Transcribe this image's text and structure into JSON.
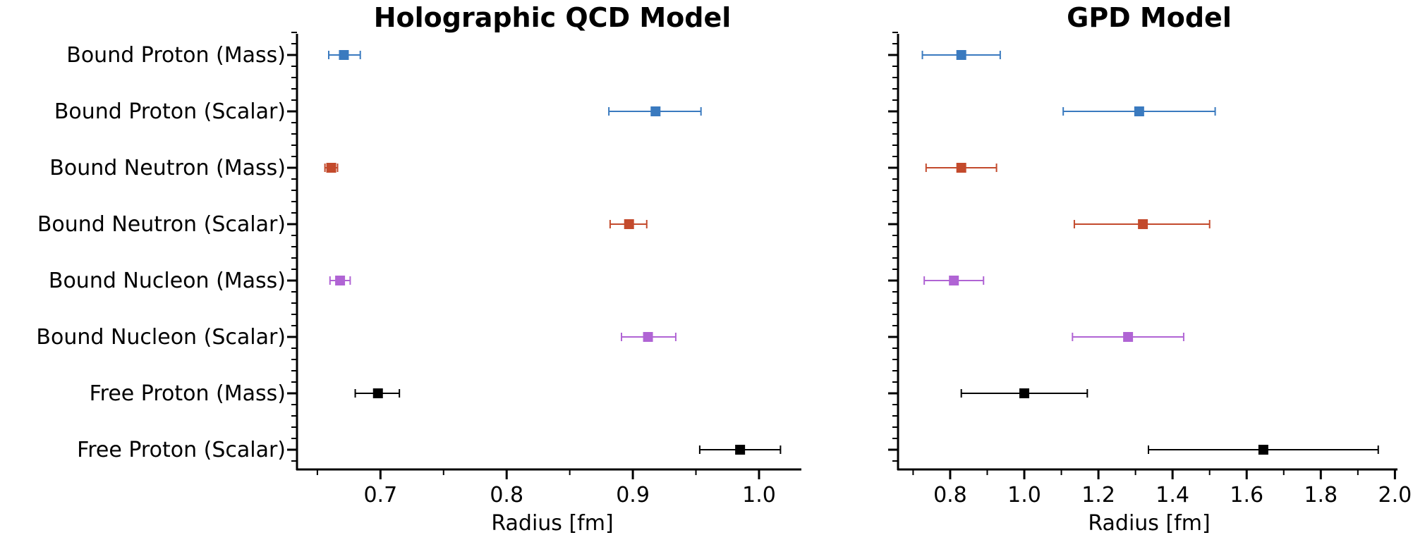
{
  "colors": {
    "proton": "#3a7abf",
    "neutron": "#c34a2c",
    "nucleon": "#b064d4",
    "free": "#000000"
  },
  "chart_data": [
    {
      "type": "errorbar",
      "title": "Holographic QCD Model",
      "xlabel": "Radius [fm]",
      "xlim": [
        0.64,
        1.033
      ],
      "xticks": [
        "0.7",
        "0.8",
        "0.9",
        "1.0"
      ],
      "categories": [
        "Bound Proton (Mass)",
        "Bound Proton (Scalar)",
        "Bound Neutron (Mass)",
        "Bound Neutron (Scalar)",
        "Bound Nucleon (Mass)",
        "Bound Nucleon (Scalar)",
        "Free Proton (Mass)",
        "Free Proton (Scalar)"
      ],
      "points": [
        {
          "category": "Bound Proton (Mass)",
          "value": 0.671,
          "err_low": 0.012,
          "err_high": 0.013,
          "color": "proton"
        },
        {
          "category": "Bound Proton (Scalar)",
          "value": 0.918,
          "err_low": 0.037,
          "err_high": 0.036,
          "color": "proton"
        },
        {
          "category": "Bound Neutron (Mass)",
          "value": 0.661,
          "err_low": 0.005,
          "err_high": 0.005,
          "color": "neutron"
        },
        {
          "category": "Bound Neutron (Scalar)",
          "value": 0.897,
          "err_low": 0.015,
          "err_high": 0.014,
          "color": "neutron"
        },
        {
          "category": "Bound Nucleon (Mass)",
          "value": 0.668,
          "err_low": 0.008,
          "err_high": 0.008,
          "color": "nucleon"
        },
        {
          "category": "Bound Nucleon (Scalar)",
          "value": 0.912,
          "err_low": 0.021,
          "err_high": 0.022,
          "color": "nucleon"
        },
        {
          "category": "Free Proton (Mass)",
          "value": 0.698,
          "err_low": 0.018,
          "err_high": 0.017,
          "color": "free"
        },
        {
          "category": "Free Proton (Scalar)",
          "value": 0.985,
          "err_low": 0.032,
          "err_high": 0.032,
          "color": "free"
        }
      ]
    },
    {
      "type": "errorbar",
      "title": "GPD Model",
      "xlabel": "Radius [fm]",
      "xlim": [
        0.665,
        2.005
      ],
      "xticks": [
        "0.8",
        "1.0",
        "1.2",
        "1.4",
        "1.6",
        "1.8",
        "2.0"
      ],
      "categories": [
        "Bound Proton (Mass)",
        "Bound Proton (Scalar)",
        "Bound Neutron (Mass)",
        "Bound Neutron (Scalar)",
        "Bound Nucleon (Mass)",
        "Bound Nucleon (Scalar)",
        "Free Proton (Mass)",
        "Free Proton (Scalar)"
      ],
      "points": [
        {
          "category": "Bound Proton (Mass)",
          "value": 0.83,
          "err_low": 0.105,
          "err_high": 0.105,
          "color": "proton"
        },
        {
          "category": "Bound Proton (Scalar)",
          "value": 1.31,
          "err_low": 0.205,
          "err_high": 0.205,
          "color": "proton"
        },
        {
          "category": "Bound Neutron (Mass)",
          "value": 0.83,
          "err_low": 0.095,
          "err_high": 0.095,
          "color": "neutron"
        },
        {
          "category": "Bound Neutron (Scalar)",
          "value": 1.32,
          "err_low": 0.185,
          "err_high": 0.18,
          "color": "neutron"
        },
        {
          "category": "Bound Nucleon (Mass)",
          "value": 0.81,
          "err_low": 0.08,
          "err_high": 0.08,
          "color": "nucleon"
        },
        {
          "category": "Bound Nucleon (Scalar)",
          "value": 1.28,
          "err_low": 0.15,
          "err_high": 0.15,
          "color": "nucleon"
        },
        {
          "category": "Free Proton (Mass)",
          "value": 1.0,
          "err_low": 0.17,
          "err_high": 0.17,
          "color": "free"
        },
        {
          "category": "Free Proton (Scalar)",
          "value": 1.645,
          "err_low": 0.31,
          "err_high": 0.31,
          "color": "free"
        }
      ]
    }
  ]
}
